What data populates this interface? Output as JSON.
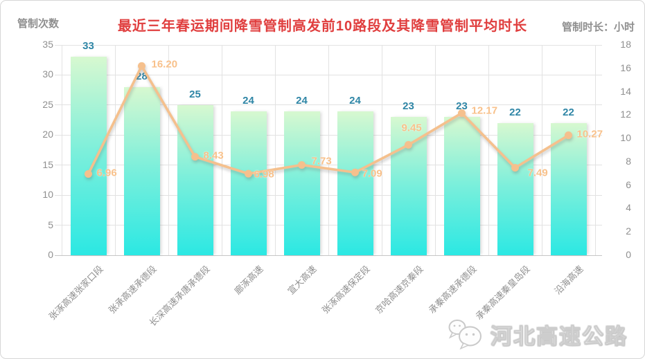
{
  "chart_data": {
    "type": "bar-line-combo",
    "title": "最近三年春运期间降雪管制高发前10路段及其降雪管制平均时长",
    "categories": [
      "张涿高速张家口段",
      "张承高速承德段",
      "长深高速承唐承德段",
      "廊涿高速",
      "宣大高速",
      "张涿高速保定段",
      "京哈高速京秦段",
      "承秦高速承德段",
      "承秦高速秦皇岛段",
      "沿海高速"
    ],
    "series": [
      {
        "name": "管制次数",
        "type": "bar",
        "axis": "left",
        "values": [
          33,
          28,
          25,
          24,
          24,
          24,
          23,
          23,
          22,
          22
        ],
        "labels": [
          "33",
          "28",
          "25",
          "24",
          "24",
          "24",
          "23",
          "23",
          "22",
          "22"
        ]
      },
      {
        "name": "管制时长：小时",
        "type": "line",
        "axis": "right",
        "values": [
          6.96,
          16.2,
          8.43,
          6.98,
          7.73,
          7.09,
          9.45,
          12.17,
          7.49,
          10.27
        ],
        "labels": [
          "6.96",
          "16.20",
          "8.43",
          "6.98",
          "7.73",
          "7.09",
          "9.45",
          "12.17",
          "7.49",
          "10.27"
        ]
      }
    ],
    "left_axis": {
      "title": "管制次数",
      "min": 0,
      "max": 35,
      "step": 5,
      "ticks": [
        "35",
        "30",
        "25",
        "20",
        "15",
        "10",
        "5",
        "0"
      ]
    },
    "right_axis": {
      "title": "管制时长：小时",
      "min": 0,
      "max": 18,
      "step": 2,
      "ticks": [
        "18",
        "16",
        "14",
        "12",
        "10",
        "8",
        "6",
        "4",
        "2",
        "0"
      ]
    },
    "grid": true,
    "legend": "none"
  },
  "colors": {
    "title": "#e03e3e",
    "axis_text": "#8f8f8f",
    "grid": "#e2e2e2",
    "bar_top": "#d7f8d0",
    "bar_bottom": "#2be8e3",
    "bar_label": "#2f86a6",
    "line": "#f5c08d",
    "line_label": "#f8c18b"
  },
  "watermark": {
    "text": "河北高速公路",
    "icon": "wechat-icon"
  }
}
